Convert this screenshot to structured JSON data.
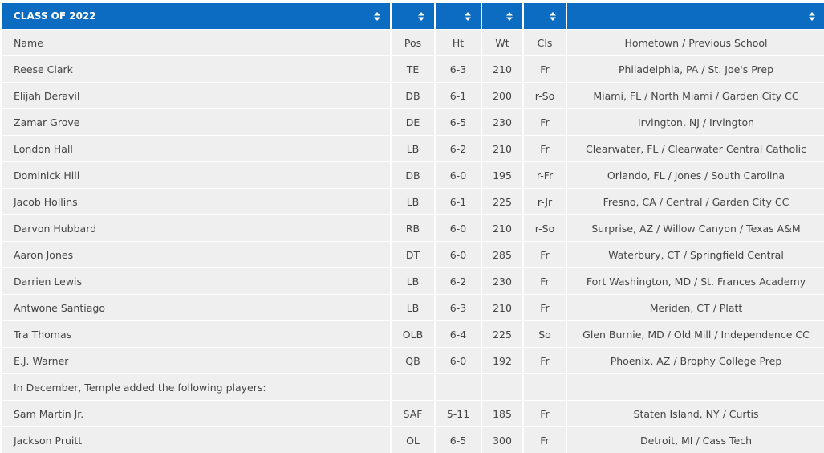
{
  "table": {
    "title": "CLASS OF 2022",
    "columns": [
      "Name",
      "Pos",
      "Ht",
      "Wt",
      "Cls",
      "Hometown / Previous School"
    ],
    "rows": [
      [
        "Reese Clark",
        "TE",
        "6-3",
        210,
        "Fr",
        "Philadelphia, PA / St. Joe's Prep"
      ],
      [
        "Elijah Deravil",
        "DB",
        "6-1",
        200,
        "r-So",
        "Miami, FL / North Miami / Garden City CC"
      ],
      [
        "Zamar Grove",
        "DE",
        "6-5",
        230,
        "Fr",
        "Irvington, NJ / Irvington"
      ],
      [
        "London Hall",
        "LB",
        "6-2",
        210,
        "Fr",
        "Clearwater, FL / Clearwater Central Catholic"
      ],
      [
        "Dominick Hill",
        "DB",
        "6-0",
        195,
        "r-Fr",
        "Orlando, FL / Jones / South Carolina"
      ],
      [
        "Jacob Hollins",
        "LB",
        "6-1",
        225,
        "r-Jr",
        "Fresno, CA / Central / Garden City CC"
      ],
      [
        "Darvon Hubbard",
        "RB",
        "6-0",
        210,
        "r-So",
        "Surprise, AZ / Willow Canyon / Texas A&M"
      ],
      [
        "Aaron Jones",
        "DT",
        "6-0",
        285,
        "Fr",
        "Waterbury, CT / Springfield Central"
      ],
      [
        "Darrien Lewis",
        "LB",
        "6-2",
        230,
        "Fr",
        "Fort Washington, MD / St. Frances Academy"
      ],
      [
        "Antwone Santiago",
        "LB",
        "6-3",
        210,
        "Fr",
        "Meriden, CT / Platt"
      ],
      [
        "Tra Thomas",
        "OLB",
        "6-4",
        225,
        "So",
        "Glen Burnie, MD / Old Mill / Independence CC"
      ],
      [
        "E.J. Warner",
        "QB",
        "6-0",
        192,
        "Fr",
        "Phoenix, AZ / Brophy College Prep"
      ]
    ],
    "note": "In December, Temple added the following players:",
    "added_rows": [
      [
        "Sam Martin Jr.",
        "SAF",
        "5-11",
        185,
        "Fr",
        "Staten Island, NY / Curtis"
      ],
      [
        "Jackson Pruitt",
        "OL",
        "6-5",
        300,
        "Fr",
        "Detroit, MI / Cass Tech"
      ]
    ]
  }
}
